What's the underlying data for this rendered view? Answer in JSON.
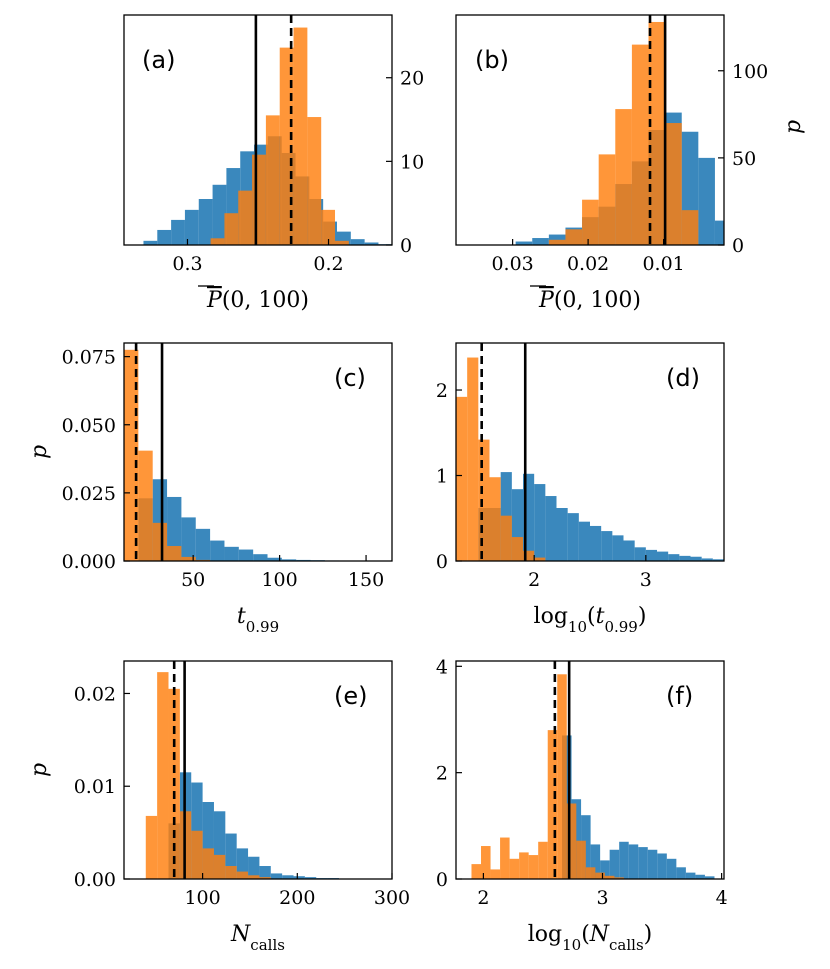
{
  "chart_data": [
    {
      "panel": "(a)",
      "type": "bar",
      "xlabel": "P̄(0, 100)",
      "ylabel": "",
      "xlim": [
        0.345,
        0.155
      ],
      "ylim": [
        0,
        27.5
      ],
      "xticks": [
        0.3,
        0.2
      ],
      "xtick_labels": [
        "0.3",
        "0.2"
      ],
      "yticks": [
        0,
        10,
        20
      ],
      "ytick_labels": [
        "0",
        "10",
        "20"
      ],
      "ytick_side": "right",
      "vline_solid": 0.2515,
      "vline_dashed": 0.2265,
      "series": [
        {
          "color": "#1f77b4",
          "bins": [
            [
              0.3312,
              0.3214
            ],
            [
              0.3214,
              0.3116
            ],
            [
              0.3116,
              0.3018
            ],
            [
              0.3018,
              0.292
            ],
            [
              0.292,
              0.2822
            ],
            [
              0.2822,
              0.2724
            ],
            [
              0.2724,
              0.2626
            ],
            [
              0.2626,
              0.2528
            ],
            [
              0.2528,
              0.243
            ],
            [
              0.243,
              0.2332
            ],
            [
              0.2332,
              0.2234
            ],
            [
              0.2234,
              0.2136
            ],
            [
              0.2136,
              0.2038
            ],
            [
              0.2038,
              0.194
            ],
            [
              0.194,
              0.1842
            ],
            [
              0.1842,
              0.1744
            ],
            [
              0.1744,
              0.1646
            ],
            [
              0.1646,
              0.1548
            ]
          ],
          "values": [
            0.5,
            1.8,
            3.0,
            4.2,
            5.5,
            7.2,
            9.2,
            11.2,
            12.0,
            13.0,
            11.0,
            8.2,
            5.5,
            2.8,
            1.6,
            0.7,
            0.3,
            0.1
          ]
        },
        {
          "color": "#ff7f0e",
          "bins": [
            [
              0.2836,
              0.2738
            ],
            [
              0.2738,
              0.264
            ],
            [
              0.264,
              0.2542
            ],
            [
              0.2542,
              0.2444
            ],
            [
              0.2444,
              0.2346
            ],
            [
              0.2346,
              0.2248
            ],
            [
              0.2248,
              0.215
            ],
            [
              0.215,
              0.2052
            ],
            [
              0.2052,
              0.1954
            ],
            [
              0.1954,
              0.1856
            ]
          ],
          "values": [
            0.8,
            3.8,
            6.5,
            10.8,
            15.5,
            23.6,
            26.0,
            15.3,
            4.2,
            0.5
          ]
        }
      ]
    },
    {
      "panel": "(b)",
      "type": "bar",
      "xlabel": "P̄(0, 100)",
      "ylabel": "p",
      "xlim": [
        0.0375,
        0.002
      ],
      "ylim": [
        0,
        132
      ],
      "xticks": [
        0.03,
        0.02,
        0.01
      ],
      "xtick_labels": [
        "0.03",
        "0.02",
        "0.01"
      ],
      "yticks": [
        0,
        50,
        100
      ],
      "ytick_labels": [
        "0",
        "50",
        "100"
      ],
      "ytick_side": "right",
      "vline_solid": 0.0098,
      "vline_dashed": 0.0118,
      "series": [
        {
          "color": "#1f77b4",
          "bins": [
            [
              0.0296,
              0.0274
            ],
            [
              0.0274,
              0.0252
            ],
            [
              0.0252,
              0.023
            ],
            [
              0.023,
              0.0208
            ],
            [
              0.0208,
              0.0186
            ],
            [
              0.0186,
              0.0164
            ],
            [
              0.0164,
              0.0142
            ],
            [
              0.0142,
              0.012
            ],
            [
              0.012,
              0.0098
            ],
            [
              0.0098,
              0.0076
            ],
            [
              0.0076,
              0.0054
            ],
            [
              0.0054,
              0.0032
            ],
            [
              0.0032,
              0.002
            ]
          ],
          "values": [
            2,
            4,
            6,
            10,
            16,
            22,
            35,
            48,
            66,
            76,
            65,
            50,
            14
          ]
        },
        {
          "color": "#ff7f0e",
          "bins": [
            [
              0.0252,
              0.023
            ],
            [
              0.023,
              0.0208
            ],
            [
              0.0208,
              0.0186
            ],
            [
              0.0186,
              0.0164
            ],
            [
              0.0164,
              0.0142
            ],
            [
              0.0142,
              0.012
            ],
            [
              0.012,
              0.0098
            ],
            [
              0.0098,
              0.0076
            ],
            [
              0.0076,
              0.0054
            ]
          ],
          "values": [
            3,
            9,
            26,
            52,
            78,
            115,
            128,
            70,
            20
          ]
        }
      ]
    },
    {
      "panel": "(c)",
      "type": "bar",
      "xlabel": "t_0.99",
      "ylabel": "p",
      "xlim": [
        10,
        165
      ],
      "ylim": [
        0,
        0.08
      ],
      "xticks": [
        50,
        100,
        150
      ],
      "xtick_labels": [
        "50",
        "100",
        "150"
      ],
      "yticks": [
        0,
        0.025,
        0.05,
        0.075
      ],
      "ytick_labels": [
        "0.000",
        "0.025",
        "0.050",
        "0.075"
      ],
      "ytick_side": "left",
      "vline_solid": 32,
      "vline_dashed": 17,
      "series": [
        {
          "color": "#1f77b4",
          "bins": [
            [
              10,
              18.3
            ],
            [
              18.3,
              26.6
            ],
            [
              26.6,
              34.9
            ],
            [
              34.9,
              43.2
            ],
            [
              43.2,
              51.5
            ],
            [
              51.5,
              59.8
            ],
            [
              59.8,
              68.1
            ],
            [
              68.1,
              76.4
            ],
            [
              76.4,
              84.7
            ],
            [
              84.7,
              93
            ],
            [
              93,
              101.3
            ],
            [
              101.3,
              109.6
            ],
            [
              109.6,
              117.9
            ],
            [
              117.9,
              126.2
            ],
            [
              126.2,
              134.5
            ],
            [
              134.5,
              142.8
            ],
            [
              142.8,
              151.1
            ],
            [
              151.1,
              159.4
            ]
          ],
          "values": [
            0.0,
            0.023,
            0.03,
            0.0235,
            0.016,
            0.0118,
            0.0075,
            0.0052,
            0.0042,
            0.0025,
            0.0012,
            0.0006,
            0.0004,
            0.0003,
            0.0002,
            0.0001,
            0.0001,
            0.0001
          ]
        },
        {
          "color": "#ff7f0e",
          "bins": [
            [
              10,
              18.3
            ],
            [
              18.3,
              26.6
            ],
            [
              26.6,
              34.9
            ],
            [
              34.9,
              43.2
            ],
            [
              43.2,
              51.5
            ],
            [
              51.5,
              59.8
            ]
          ],
          "values": [
            0.0775,
            0.0405,
            0.014,
            0.0055,
            0.0015,
            0.0004
          ]
        }
      ]
    },
    {
      "panel": "(d)",
      "type": "bar",
      "xlabel": "log10(t_0.99)",
      "ylabel": "",
      "xlim": [
        1.3,
        3.7
      ],
      "ylim": [
        0,
        2.55
      ],
      "xticks": [
        2,
        3
      ],
      "xtick_labels": [
        "2",
        "3"
      ],
      "yticks": [
        0,
        1,
        2
      ],
      "ytick_labels": [
        "0",
        "1",
        "2"
      ],
      "ytick_side": "left",
      "vline_solid": 1.92,
      "vline_dashed": 1.53,
      "series": [
        {
          "color": "#1f77b4",
          "bins": [
            [
              1.3,
              1.4
            ],
            [
              1.4,
              1.5
            ],
            [
              1.5,
              1.6
            ],
            [
              1.6,
              1.7
            ],
            [
              1.7,
              1.8
            ],
            [
              1.8,
              1.9
            ],
            [
              1.9,
              2.0
            ],
            [
              2.0,
              2.1
            ],
            [
              2.1,
              2.2
            ],
            [
              2.2,
              2.3
            ],
            [
              2.3,
              2.4
            ],
            [
              2.4,
              2.5
            ],
            [
              2.5,
              2.6
            ],
            [
              2.6,
              2.7
            ],
            [
              2.7,
              2.8
            ],
            [
              2.8,
              2.9
            ],
            [
              2.9,
              3.0
            ],
            [
              3.0,
              3.1
            ],
            [
              3.1,
              3.2
            ],
            [
              3.2,
              3.3
            ],
            [
              3.3,
              3.4
            ],
            [
              3.4,
              3.5
            ],
            [
              3.5,
              3.6
            ],
            [
              3.6,
              3.7
            ]
          ],
          "values": [
            0.0,
            0.0,
            0.62,
            0.62,
            1.04,
            0.84,
            1.02,
            0.9,
            0.76,
            0.62,
            0.56,
            0.46,
            0.41,
            0.35,
            0.3,
            0.24,
            0.16,
            0.13,
            0.11,
            0.08,
            0.06,
            0.05,
            0.03,
            0.02
          ]
        },
        {
          "color": "#ff7f0e",
          "bins": [
            [
              1.3,
              1.4
            ],
            [
              1.4,
              1.5
            ],
            [
              1.5,
              1.6
            ],
            [
              1.6,
              1.7
            ],
            [
              1.7,
              1.8
            ],
            [
              1.8,
              1.9
            ],
            [
              1.9,
              2.0
            ],
            [
              2.0,
              2.1
            ]
          ],
          "values": [
            1.92,
            2.38,
            1.42,
            0.98,
            0.53,
            0.28,
            0.12,
            0.04
          ]
        }
      ]
    },
    {
      "panel": "(e)",
      "type": "bar",
      "xlabel": "N_calls",
      "ylabel": "p",
      "xlim": [
        17,
        300
      ],
      "ylim": [
        0,
        0.0235
      ],
      "xticks": [
        100,
        200,
        300
      ],
      "xtick_labels": [
        "100",
        "200",
        "300"
      ],
      "yticks": [
        0,
        0.01,
        0.02
      ],
      "ytick_labels": [
        "0.00",
        "0.01",
        "0.02"
      ],
      "ytick_side": "left",
      "vline_solid": 81,
      "vline_dashed": 70,
      "series": [
        {
          "color": "#1f77b4",
          "bins": [
            [
              40,
              52
            ],
            [
              52,
              64
            ],
            [
              64,
              76
            ],
            [
              76,
              88
            ],
            [
              88,
              100
            ],
            [
              100,
              112
            ],
            [
              112,
              124
            ],
            [
              124,
              136
            ],
            [
              136,
              148
            ],
            [
              148,
              160
            ],
            [
              160,
              172
            ],
            [
              172,
              184
            ],
            [
              184,
              196
            ],
            [
              196,
              208
            ],
            [
              208,
              220
            ],
            [
              220,
              232
            ],
            [
              232,
              244
            ]
          ],
          "values": [
            0.0,
            0.0,
            0.006,
            0.0115,
            0.0104,
            0.0083,
            0.0073,
            0.0049,
            0.0033,
            0.0024,
            0.0014,
            0.0006,
            0.0004,
            0.0003,
            0.0002,
            0.0001,
            0.0001
          ]
        },
        {
          "color": "#ff7f0e",
          "bins": [
            [
              40,
              52
            ],
            [
              52,
              64
            ],
            [
              64,
              76
            ],
            [
              76,
              88
            ],
            [
              88,
              100
            ],
            [
              100,
              112
            ],
            [
              112,
              124
            ],
            [
              124,
              136
            ],
            [
              136,
              148
            ],
            [
              148,
              160
            ],
            [
              160,
              172
            ]
          ],
          "values": [
            0.0068,
            0.0223,
            0.0205,
            0.0073,
            0.0052,
            0.0033,
            0.0026,
            0.0014,
            0.0008,
            0.0004,
            0.0002
          ]
        }
      ]
    },
    {
      "panel": "(f)",
      "type": "bar",
      "xlabel": "log10(N_calls)",
      "ylabel": "",
      "xlim": [
        1.77,
        4.02
      ],
      "ylim": [
        0,
        4.1
      ],
      "xticks": [
        2,
        3,
        4
      ],
      "xtick_labels": [
        "2",
        "3",
        "4"
      ],
      "yticks": [
        0,
        2,
        4
      ],
      "ytick_labels": [
        "0",
        "2",
        "4"
      ],
      "ytick_side": "left",
      "vline_solid": 2.72,
      "vline_dashed": 2.6,
      "series": [
        {
          "color": "#1f77b4",
          "bins": [
            [
              2.5,
              2.58
            ],
            [
              2.58,
              2.66
            ],
            [
              2.66,
              2.74
            ],
            [
              2.74,
              2.82
            ],
            [
              2.82,
              2.9
            ],
            [
              2.9,
              2.98
            ],
            [
              2.98,
              3.06
            ],
            [
              3.06,
              3.14
            ],
            [
              3.14,
              3.22
            ],
            [
              3.22,
              3.3
            ],
            [
              3.3,
              3.38
            ],
            [
              3.38,
              3.46
            ],
            [
              3.46,
              3.54
            ],
            [
              3.54,
              3.62
            ],
            [
              3.62,
              3.7
            ],
            [
              3.7,
              3.78
            ],
            [
              3.78,
              3.86
            ],
            [
              3.86,
              3.94
            ]
          ],
          "values": [
            0.0,
            0.0,
            2.7,
            1.5,
            1.2,
            0.65,
            0.35,
            0.55,
            0.7,
            0.65,
            0.6,
            0.55,
            0.48,
            0.38,
            0.22,
            0.12,
            0.08,
            0.05
          ]
        },
        {
          "color": "#ff7f0e",
          "bins": [
            [
              1.9,
              1.98
            ],
            [
              1.98,
              2.06
            ],
            [
              2.06,
              2.14
            ],
            [
              2.14,
              2.22
            ],
            [
              2.22,
              2.3
            ],
            [
              2.3,
              2.38
            ],
            [
              2.38,
              2.46
            ],
            [
              2.46,
              2.54
            ],
            [
              2.54,
              2.62
            ],
            [
              2.62,
              2.7
            ],
            [
              2.7,
              2.78
            ],
            [
              2.78,
              2.86
            ],
            [
              2.86,
              2.94
            ],
            [
              2.94,
              3.02
            ],
            [
              3.02,
              3.1
            ],
            [
              3.1,
              3.18
            ]
          ],
          "values": [
            0.28,
            0.62,
            0.18,
            0.78,
            0.38,
            0.5,
            0.45,
            0.7,
            2.8,
            3.85,
            1.42,
            0.72,
            0.22,
            0.12,
            0.06,
            0.03
          ]
        }
      ]
    }
  ]
}
